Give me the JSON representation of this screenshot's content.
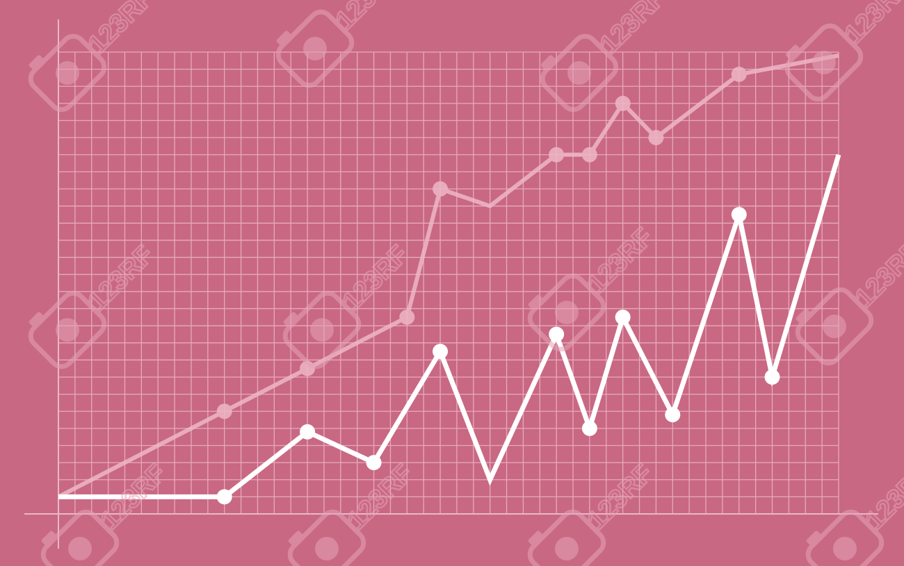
{
  "colors": {
    "background": "#c96883",
    "grid": "#e7aabd",
    "axis": "#e9b9c8",
    "series_bright": "#ffffff",
    "series_faded": "#eeb7c7",
    "watermark": "#e3a3b6"
  },
  "watermark": {
    "text": "123RF",
    "camera_icon": "camera-icon"
  },
  "chart_data": {
    "type": "line",
    "title": "",
    "xlabel": "",
    "ylabel": "",
    "grid": true,
    "legend": "none",
    "x_range": [
      0,
      47
    ],
    "y_range": [
      0,
      27
    ],
    "x_ticks": [],
    "y_ticks": [],
    "series": [
      {
        "style": "faded",
        "points": [
          {
            "x": 0,
            "y": 1,
            "marker": false
          },
          {
            "x": 10,
            "y": 6,
            "marker": true
          },
          {
            "x": 15,
            "y": 8.5,
            "marker": true
          },
          {
            "x": 21,
            "y": 11.5,
            "marker": true
          },
          {
            "x": 23,
            "y": 19,
            "marker": true
          },
          {
            "x": 26,
            "y": 18,
            "marker": false
          },
          {
            "x": 30,
            "y": 21,
            "marker": true
          },
          {
            "x": 32,
            "y": 21,
            "marker": true
          },
          {
            "x": 34,
            "y": 24,
            "marker": true
          },
          {
            "x": 36,
            "y": 22,
            "marker": true
          },
          {
            "x": 41,
            "y": 25.7,
            "marker": true
          },
          {
            "x": 47,
            "y": 26.8,
            "marker": false
          }
        ]
      },
      {
        "style": "bright",
        "points": [
          {
            "x": 0,
            "y": 1,
            "marker": false
          },
          {
            "x": 10,
            "y": 1,
            "marker": true
          },
          {
            "x": 15,
            "y": 4.8,
            "marker": true
          },
          {
            "x": 19,
            "y": 3,
            "marker": true
          },
          {
            "x": 23,
            "y": 9.5,
            "marker": true
          },
          {
            "x": 26,
            "y": 2,
            "marker": false
          },
          {
            "x": 30,
            "y": 10.5,
            "marker": true
          },
          {
            "x": 32,
            "y": 5,
            "marker": true
          },
          {
            "x": 34,
            "y": 11.5,
            "marker": true
          },
          {
            "x": 37,
            "y": 5.8,
            "marker": true
          },
          {
            "x": 41,
            "y": 17.5,
            "marker": true
          },
          {
            "x": 43,
            "y": 8,
            "marker": true
          },
          {
            "x": 47,
            "y": 21,
            "marker": false
          }
        ]
      }
    ]
  }
}
